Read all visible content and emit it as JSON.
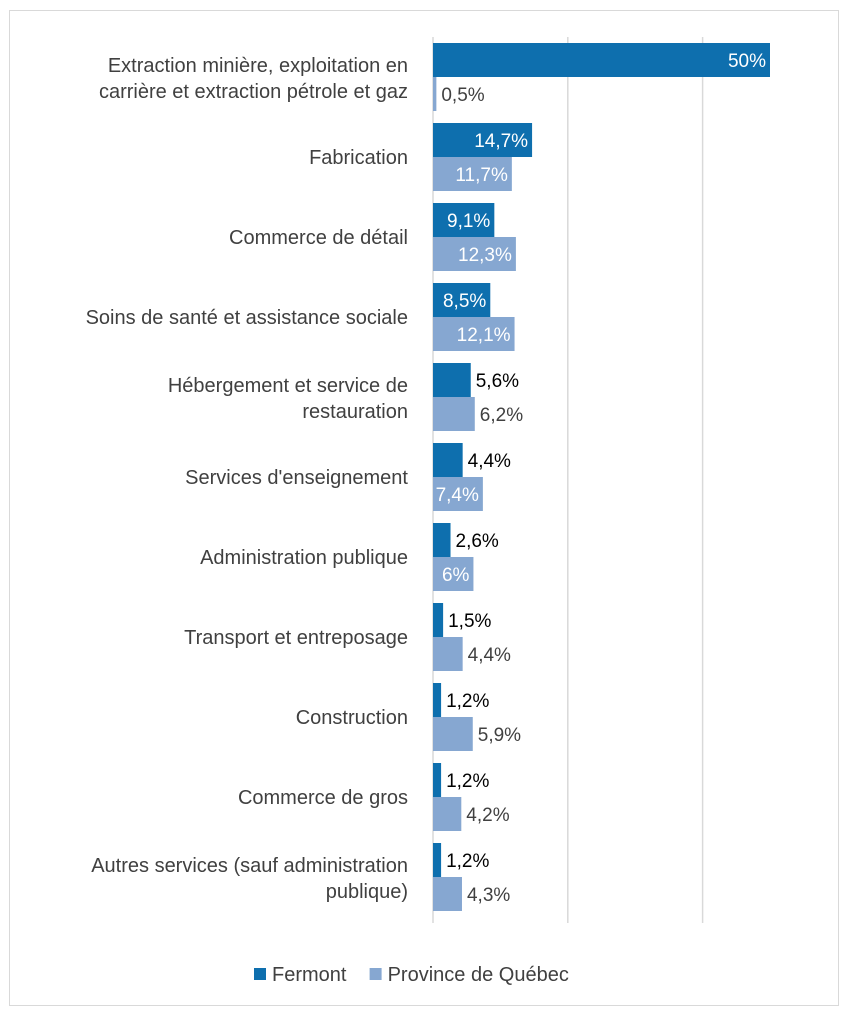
{
  "chart_data": {
    "type": "bar",
    "orientation": "horizontal",
    "title": "",
    "xlabel": "",
    "ylabel": "",
    "xlim": [
      0,
      50
    ],
    "grid": true,
    "legend_position": "bottom",
    "colors": {
      "Fermont": "#0e6fae",
      "Province de Québec": "#86a7d1"
    },
    "categories": [
      [
        "Extraction minière, exploitation en",
        "carrière et extraction pétrole et gaz"
      ],
      [
        "Fabrication"
      ],
      [
        "Commerce de détail"
      ],
      [
        "Soins de santé et assistance sociale"
      ],
      [
        "Hébergement et service de",
        "restauration"
      ],
      [
        "Services d'enseignement"
      ],
      [
        "Administration publique"
      ],
      [
        "Transport et entreposage"
      ],
      [
        "Construction"
      ],
      [
        "Commerce de gros"
      ],
      [
        "Autres services (sauf administration",
        "publique)"
      ]
    ],
    "series": [
      {
        "name": "Fermont",
        "values": [
          50,
          14.7,
          9.1,
          8.5,
          5.6,
          4.4,
          2.6,
          1.5,
          1.2,
          1.2,
          1.2
        ],
        "labels": [
          "50%",
          "14,7%",
          "9,1%",
          "8,5%",
          "5,6%",
          "4,4%",
          "2,6%",
          "1,5%",
          "1,2%",
          "1,2%",
          "1,2%"
        ]
      },
      {
        "name": "Province de Québec",
        "values": [
          0.5,
          11.7,
          12.3,
          12.1,
          6.2,
          7.4,
          6,
          4.4,
          5.9,
          4.2,
          4.3
        ],
        "labels": [
          "0,5%",
          "11,7%",
          "12,3%",
          "12,1%",
          "6,2%",
          "7,4%",
          "6%",
          "4,4%",
          "5,9%",
          "4,2%",
          "4,3%"
        ]
      }
    ]
  }
}
